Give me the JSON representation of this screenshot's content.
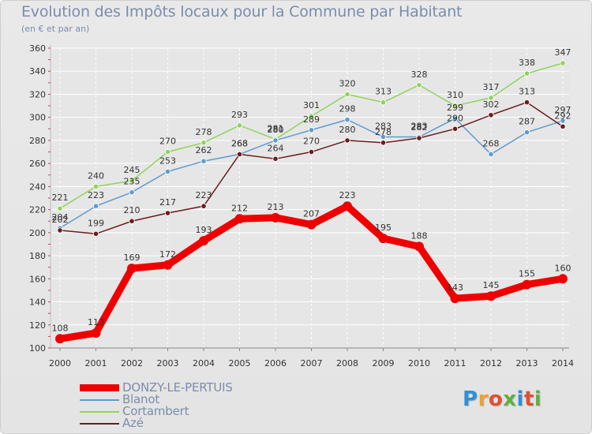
{
  "chart_data": {
    "type": "line",
    "title": "Evolution des Impôts locaux pour la Commune par Habitant",
    "subtitle": "(en € et par an)",
    "xlabel": "",
    "ylabel": "",
    "ylim": [
      100,
      360
    ],
    "yticks": [
      100,
      120,
      140,
      160,
      180,
      200,
      220,
      240,
      260,
      280,
      300,
      320,
      340,
      360
    ],
    "grid": true,
    "legend_position": "bottom-left",
    "categories": [
      "2000",
      "2001",
      "2002",
      "2003",
      "2004",
      "2005",
      "2006",
      "2007",
      "2008",
      "2009",
      "2010",
      "2011",
      "2012",
      "2013",
      "2014"
    ],
    "series": [
      {
        "name": "Cortambert",
        "color": "#8ed45a",
        "values": [
          221,
          240,
          245,
          270,
          278,
          293,
          281,
          301,
          320,
          313,
          328,
          310,
          317,
          338,
          347
        ]
      },
      {
        "name": "Blanot",
        "color": "#5f9bd0",
        "values": [
          204,
          223,
          235,
          253,
          262,
          268,
          280,
          289,
          298,
          283,
          283,
          299,
          268,
          287,
          297
        ]
      },
      {
        "name": "Azé",
        "color": "#6b1c1c",
        "values": [
          202,
          199,
          210,
          217,
          223,
          268,
          264,
          270,
          280,
          278,
          282,
          290,
          302,
          313,
          292
        ]
      },
      {
        "name": "DONZY-LE-PERTUIS",
        "color": "#ee0000",
        "values": [
          108,
          113,
          169,
          172,
          193,
          212,
          213,
          207,
          223,
          195,
          188,
          143,
          145,
          155,
          160
        ]
      }
    ]
  },
  "legend": {
    "items": [
      {
        "name": "DONZY-LE-PERTUIS",
        "color": "#ee0000"
      },
      {
        "name": "Blanot",
        "color": "#5f9bd0"
      },
      {
        "name": "Cortambert",
        "color": "#8ed45a"
      },
      {
        "name": "Azé",
        "color": "#6b1c1c"
      }
    ]
  },
  "logo": {
    "letters": [
      "P",
      "r",
      "o",
      "x",
      "i",
      "t",
      "i"
    ],
    "colors": [
      "#2f8fd8",
      "#f0a030",
      "#e05030",
      "#60b040",
      "#2f8fd8",
      "#e05030",
      "#60b040"
    ]
  }
}
